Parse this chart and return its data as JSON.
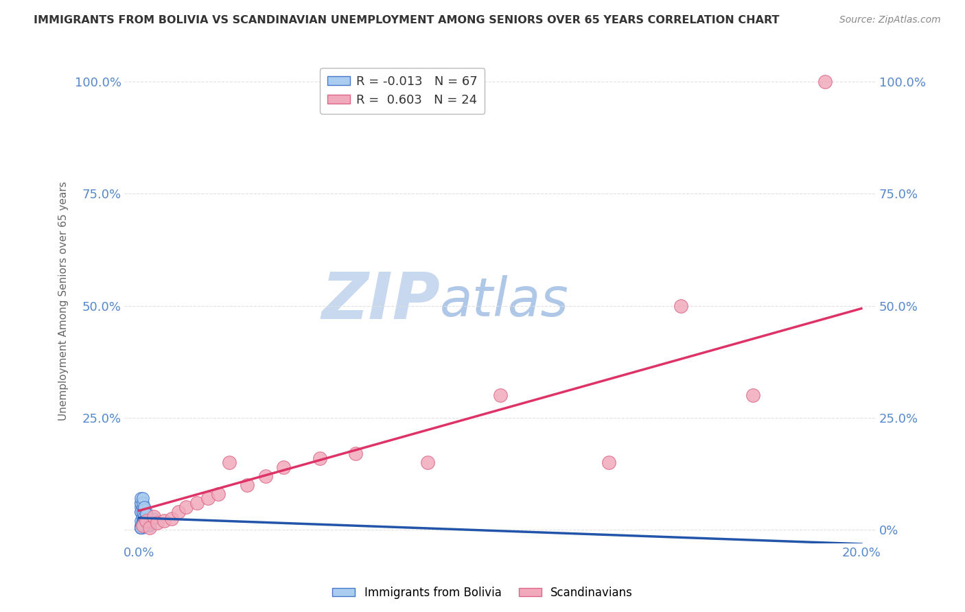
{
  "title": "IMMIGRANTS FROM BOLIVIA VS SCANDINAVIAN UNEMPLOYMENT AMONG SENIORS OVER 65 YEARS CORRELATION CHART",
  "source": "Source: ZipAtlas.com",
  "ylabel": "Unemployment Among Seniors over 65 years",
  "xlim": [
    -0.004,
    0.204
  ],
  "ylim": [
    -0.03,
    1.05
  ],
  "xtick_labels": [
    "0.0%",
    "20.0%"
  ],
  "xtick_vals": [
    0.0,
    0.2
  ],
  "ytick_labels_left": [
    "",
    "25.0%",
    "50.0%",
    "75.0%",
    "100.0%"
  ],
  "ytick_labels_right": [
    "0%",
    "25.0%",
    "50.0%",
    "75.0%",
    "100.0%"
  ],
  "ytick_vals": [
    0.0,
    0.25,
    0.5,
    0.75,
    1.0
  ],
  "legend1_label": "Immigrants from Bolivia",
  "legend2_label": "Scandinavians",
  "R_bolivia": -0.013,
  "N_bolivia": 67,
  "R_scand": 0.603,
  "N_scand": 24,
  "blue_fill": "#aaccee",
  "blue_edge": "#4477cc",
  "pink_fill": "#f0aabb",
  "pink_edge": "#dd6688",
  "blue_line": "#2255aa",
  "pink_line": "#dd3366",
  "title_color": "#333333",
  "source_color": "#888888",
  "axis_tick_color": "#5588cc",
  "ylabel_color": "#666666",
  "watermark_zip_color": "#c8d8ee",
  "watermark_atlas_color": "#b0c8e8",
  "grid_color": "#e0e0e0",
  "bg_color": "#ffffff",
  "bolivia_x": [
    0.0005,
    0.001,
    0.001,
    0.0015,
    0.001,
    0.0005,
    0.002,
    0.001,
    0.0015,
    0.0005,
    0.002,
    0.001,
    0.0015,
    0.002,
    0.0005,
    0.0025,
    0.001,
    0.0015,
    0.002,
    0.0005,
    0.001,
    0.002,
    0.0015,
    0.0025,
    0.0005,
    0.001,
    0.0015,
    0.003,
    0.002,
    0.001,
    0.0005,
    0.0015,
    0.002,
    0.001,
    0.002,
    0.0005,
    0.0025,
    0.0015,
    0.001,
    0.002,
    0.0005,
    0.002,
    0.001,
    0.0015,
    0.003,
    0.0005,
    0.002,
    0.001,
    0.0015,
    0.0025,
    0.0005,
    0.002,
    0.001,
    0.0015,
    0.0005,
    0.002,
    0.001,
    0.0015,
    0.0015,
    0.0005,
    0.0025,
    0.001,
    0.0015,
    0.004,
    0.0005,
    0.002,
    0.001
  ],
  "bolivia_y": [
    0.02,
    0.01,
    0.03,
    0.015,
    0.025,
    0.04,
    0.01,
    0.03,
    0.02,
    0.05,
    0.01,
    0.03,
    0.02,
    0.04,
    0.01,
    0.025,
    0.05,
    0.03,
    0.015,
    0.06,
    0.02,
    0.01,
    0.035,
    0.02,
    0.04,
    0.015,
    0.05,
    0.025,
    0.01,
    0.03,
    0.06,
    0.02,
    0.015,
    0.04,
    0.025,
    0.07,
    0.01,
    0.03,
    0.05,
    0.02,
    0.005,
    0.015,
    0.03,
    0.025,
    0.01,
    0.005,
    0.02,
    0.04,
    0.03,
    0.01,
    0.005,
    0.025,
    0.06,
    0.015,
    0.005,
    0.03,
    0.07,
    0.02,
    0.045,
    0.005,
    0.015,
    0.005,
    0.05,
    0.025,
    0.005,
    0.035,
    0.01
  ],
  "scand_x": [
    0.001,
    0.002,
    0.003,
    0.004,
    0.005,
    0.007,
    0.009,
    0.011,
    0.013,
    0.016,
    0.019,
    0.022,
    0.025,
    0.03,
    0.035,
    0.04,
    0.05,
    0.06,
    0.08,
    0.1,
    0.13,
    0.15,
    0.17,
    0.19
  ],
  "scand_y": [
    0.01,
    0.02,
    0.005,
    0.03,
    0.015,
    0.02,
    0.025,
    0.04,
    0.05,
    0.06,
    0.07,
    0.08,
    0.15,
    0.1,
    0.12,
    0.14,
    0.16,
    0.17,
    0.15,
    0.3,
    0.15,
    0.5,
    0.3,
    1.0
  ]
}
